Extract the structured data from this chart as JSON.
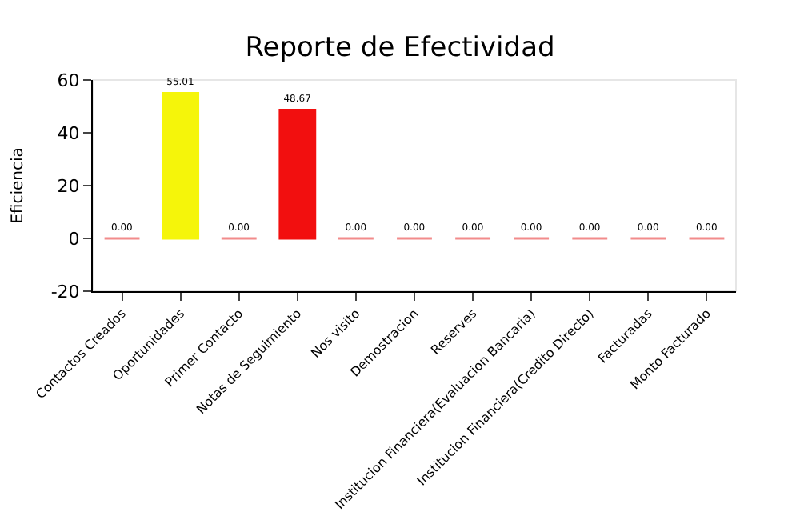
{
  "chart_data": {
    "type": "bar",
    "title": "Reporte de Efectividad",
    "ylabel": "Eficiencia",
    "categories": [
      "Contactos Creados",
      "Oportunidades",
      "Primer Contacto",
      "Notas de Seguimiento",
      "Nos visito",
      "Demostracion",
      "Reserves",
      "Institucion Financiera(Evaluacion Bancaria)",
      "Institucion Financiera(Credito Directo)",
      "Facturadas",
      "Monto Facturado"
    ],
    "values": [
      0,
      55.01,
      0,
      48.67,
      0,
      0,
      0,
      0,
      0,
      0,
      0
    ],
    "value_labels": [
      "0.00",
      "55.01",
      "0.00",
      "48.67",
      "0.00",
      "0.00",
      "0.00",
      "0.00",
      "0.00",
      "0.00",
      "0.00"
    ],
    "colors": [
      "#f28b8b",
      "#f5f50a",
      "#f28b8b",
      "#f20f0f",
      "#f28b8b",
      "#f28b8b",
      "#f28b8b",
      "#f28b8b",
      "#f28b8b",
      "#f28b8b",
      "#f28b8b"
    ],
    "ylim": [
      -20,
      60
    ],
    "yticks": [
      -20,
      0,
      20,
      40,
      60
    ]
  }
}
